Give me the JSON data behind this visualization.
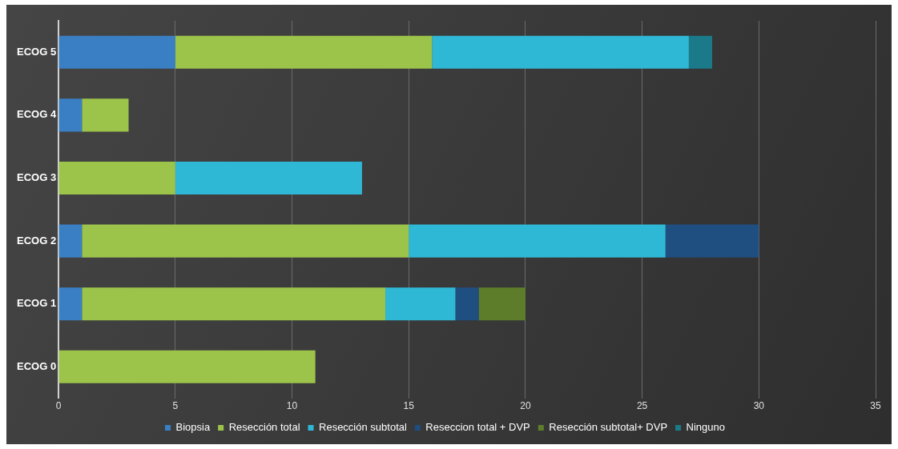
{
  "chart_data": {
    "type": "bar",
    "orientation": "horizontal",
    "stacked": true,
    "categories": [
      "ECOG 5",
      "ECOG 4",
      "ECOG 3",
      "ECOG 2",
      "ECOG 1",
      "ECOG 0"
    ],
    "series": [
      {
        "name": "Biopsia",
        "color": "#3a7fc4",
        "values": [
          5,
          1,
          null,
          1,
          1,
          null
        ]
      },
      {
        "name": "Resección total",
        "color": "#9cc44a",
        "values": [
          11,
          2,
          5,
          14,
          13,
          11
        ]
      },
      {
        "name": "Resección subtotal",
        "color": "#2fb8d6",
        "values": [
          11,
          null,
          8,
          11,
          3,
          null
        ]
      },
      {
        "name": "Reseccion total + DVP",
        "color": "#1f4e80",
        "values": [
          null,
          null,
          null,
          4,
          1,
          null
        ]
      },
      {
        "name": "Resección subtotal+ DVP",
        "color": "#5e7d2a",
        "values": [
          null,
          null,
          null,
          null,
          2,
          null
        ]
      },
      {
        "name": "Ninguno",
        "color": "#1b7a8a",
        "values": [
          1,
          null,
          null,
          null,
          null,
          null
        ]
      }
    ],
    "xlim": [
      0,
      35
    ],
    "xticks": [
      0,
      5,
      10,
      15,
      20,
      25,
      30,
      35
    ],
    "grid": "x",
    "legend": "bottom"
  }
}
